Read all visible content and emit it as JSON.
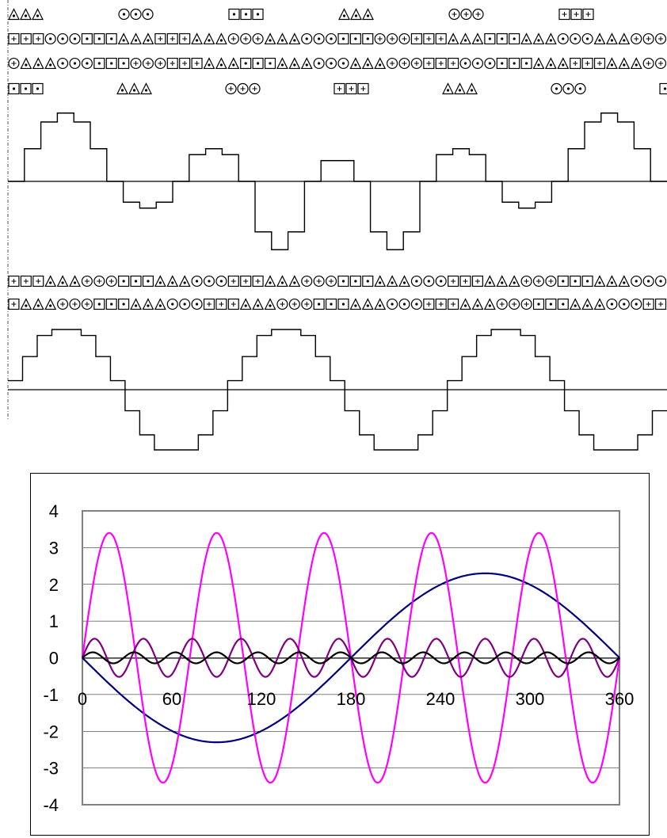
{
  "winding_diagram": {
    "top_group_symbols": [
      "triangle",
      "circle-dot",
      "square-dot",
      "triangle",
      "circle-plus",
      "square-plus"
    ],
    "row1_pattern": "PPPCCCDDDTTTPPPTTTOOOTTTCCCDDDOOOPPPTTTDDDTTTCCCTTTOOO",
    "row2_pattern": "OTTTCCCDDDOOOPPPTTTDDDTTTCCCTTTOOOPPPCCCDDDTTTPPPTTTOO",
    "row3_symbols": [
      "square-dot",
      "triangle",
      "circle-plus",
      "square-plus",
      "triangle",
      "circle-dot",
      "square-dot"
    ],
    "row4_pattern": "PPPTTTOOODDDTTTCCCPPPTTTOOODDDTTTCCCPPPTTTOOODDDTTTCCC",
    "row5_pattern": "PTTTOOODDDTTTCCCPPPTTTOOODDDTTTCCCPPPTTTOOODDDTTTCCCPP"
  },
  "step_waveform_1": [
    0.0,
    0.55,
    1.0,
    1.15,
    1.0,
    0.55,
    0.0,
    -0.35,
    -0.45,
    -0.35,
    0.0,
    0.45,
    0.55,
    0.45,
    0.0,
    -0.85,
    -1.15,
    -0.85,
    0.0,
    0.35,
    0.35,
    0.0,
    -0.85,
    -1.15,
    -0.85,
    0.0,
    0.45,
    0.55,
    0.45,
    0.0,
    -0.35,
    -0.45,
    -0.35,
    0.0,
    0.55,
    1.0,
    1.15,
    1.0,
    0.55,
    0.0
  ],
  "step_waveform_2": [
    0.15,
    0.55,
    0.9,
    1.0,
    1.0,
    0.9,
    0.55,
    0.15,
    -0.35,
    -0.75,
    -1.0,
    -1.0,
    -1.0,
    -0.75,
    -0.35
  ],
  "chart_data": {
    "type": "line",
    "title": "",
    "xlabel": "",
    "ylabel": "",
    "xlim": [
      0,
      360
    ],
    "ylim": [
      -4,
      4
    ],
    "x_ticks": [
      "0",
      "60",
      "120",
      "180",
      "240",
      "300",
      "360"
    ],
    "y_ticks": [
      "4",
      "3",
      "2",
      "1",
      "0",
      "-1",
      "-2",
      "-3",
      "-4"
    ],
    "grid": true,
    "series": [
      {
        "color": "#000080",
        "amplitude": -2.3,
        "harmonic": 1
      },
      {
        "color": "#ff00ff",
        "amplitude": 3.4,
        "harmonic": 5
      },
      {
        "color": "#800080",
        "amplitude": 0.52,
        "harmonic": 11
      },
      {
        "color": "#000000",
        "amplitude": 0.15,
        "harmonic": 13
      }
    ]
  }
}
